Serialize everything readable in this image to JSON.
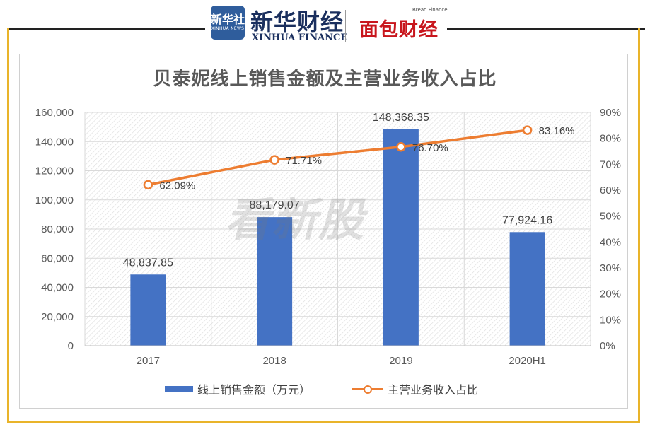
{
  "header": {
    "brand_box_cn": "新华社",
    "brand_box_en": "XINHUA NEWS",
    "xinhua_cn": "新华财经",
    "xinhua_en": "XINHUA FINANCE",
    "bread_en": "Bread Finance",
    "bread_cn": "面包财经"
  },
  "watermark": "看新股",
  "chart_data": {
    "type": "bar",
    "title": "贝泰妮线上销售金额及主营业务收入占比",
    "categories": [
      "2017",
      "2018",
      "2019",
      "2020H1"
    ],
    "series": [
      {
        "name": "线上销售金额（万元）",
        "type": "bar",
        "axis": "left",
        "values": [
          48837.85,
          88179.07,
          148368.35,
          77924.16
        ],
        "labels": [
          "48,837.85",
          "88,179.07",
          "148,368.35",
          "77,924.16"
        ],
        "color": "#4472c4"
      },
      {
        "name": "主营业务收入占比",
        "type": "line",
        "axis": "right",
        "values": [
          62.09,
          71.71,
          76.7,
          83.16
        ],
        "labels": [
          "62.09%",
          "71.71%",
          "76.70%",
          "83.16%"
        ],
        "color": "#ed7d31"
      }
    ],
    "y_left": {
      "min": 0,
      "max": 160000,
      "ticks": [
        "0",
        "20,000",
        "40,000",
        "60,000",
        "80,000",
        "100,000",
        "120,000",
        "140,000",
        "160,000"
      ]
    },
    "y_right": {
      "min": 0,
      "max": 90,
      "ticks": [
        "0%",
        "10%",
        "20%",
        "30%",
        "40%",
        "50%",
        "60%",
        "70%",
        "80%",
        "90%"
      ]
    },
    "grid": true,
    "legend": "bottom"
  }
}
